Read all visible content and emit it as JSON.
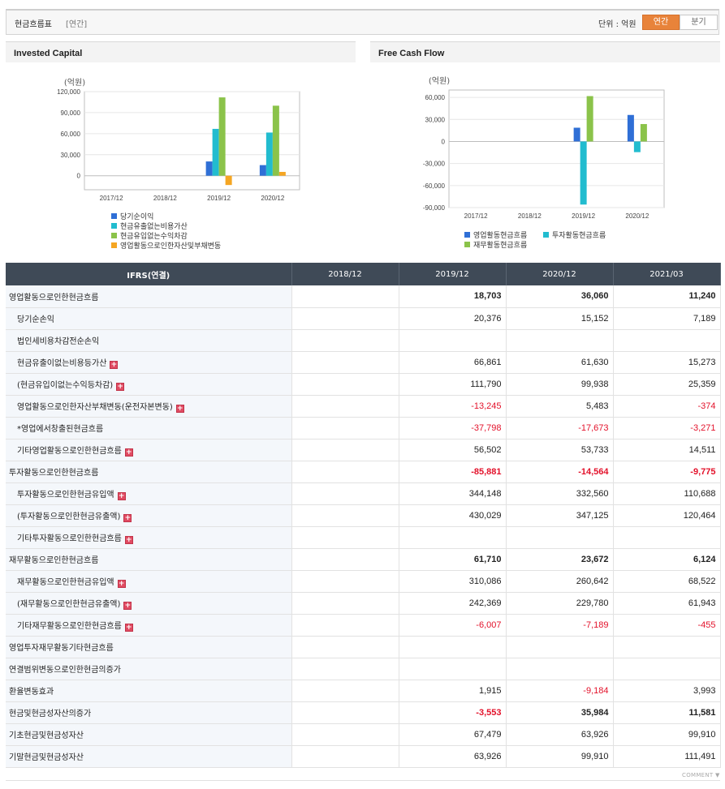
{
  "header": {
    "title": "현금흐름표",
    "subtitle": "[연간]",
    "unit_label": "단위 : 억원",
    "period_active": "연간",
    "period_inactive": "분기"
  },
  "chart_data": [
    {
      "type": "bar",
      "title": "Invested Capital",
      "ylabel": "(억원)",
      "ylim": [
        -20000,
        120000
      ],
      "yticks": [
        120000,
        90000,
        60000,
        30000,
        0
      ],
      "ytick_labels": [
        "120,000",
        "90,000",
        "60,000",
        "30,000",
        "0"
      ],
      "categories": [
        "2017/12",
        "2018/12",
        "2019/12",
        "2020/12"
      ],
      "legend": "bottom",
      "series": [
        {
          "name": "당기순이익",
          "color": "#2f6fd6",
          "values": [
            null,
            null,
            20376,
            15152
          ]
        },
        {
          "name": "현금유출없는비용가산",
          "color": "#22bccf",
          "values": [
            null,
            null,
            66861,
            61630
          ]
        },
        {
          "name": "현금유입없는수익차감",
          "color": "#8bc34a",
          "values": [
            null,
            null,
            111790,
            99938
          ]
        },
        {
          "name": "영업활동으로인한자산및부채변동",
          "color": "#f5a623",
          "values": [
            null,
            null,
            -13245,
            5483
          ]
        }
      ]
    },
    {
      "type": "bar",
      "title": "Free Cash Flow",
      "ylabel": "(억원)",
      "ylim": [
        -90000,
        70000
      ],
      "yticks": [
        60000,
        30000,
        0,
        -30000,
        -60000,
        -90000
      ],
      "ytick_labels": [
        "60,000",
        "30,000",
        "0",
        "-30,000",
        "-60,000",
        "-90,000"
      ],
      "categories": [
        "2017/12",
        "2018/12",
        "2019/12",
        "2020/12"
      ],
      "legend": "bottom",
      "series": [
        {
          "name": "영업활동현금흐름",
          "color": "#2f6fd6",
          "values": [
            null,
            null,
            18703,
            36060
          ]
        },
        {
          "name": "투자활동현금흐름",
          "color": "#22bccf",
          "values": [
            null,
            null,
            -85881,
            -14564
          ]
        },
        {
          "name": "재무활동현금흐름",
          "color": "#8bc34a",
          "values": [
            null,
            null,
            61710,
            23672
          ]
        }
      ]
    }
  ],
  "table": {
    "header": [
      "IFRS(연결)",
      "2018/12",
      "2019/12",
      "2020/12",
      "2021/03"
    ],
    "rows": [
      {
        "label": "영업활동으로인한현금흐름",
        "level": "main",
        "expand": false,
        "values": [
          "",
          "18,703",
          "36,060",
          "11,240"
        ]
      },
      {
        "label": "당기순손익",
        "level": "sub",
        "expand": false,
        "values": [
          "",
          "20,376",
          "15,152",
          "7,189"
        ]
      },
      {
        "label": "법인세비용차감전순손익",
        "level": "sub",
        "expand": false,
        "values": [
          "",
          "",
          "",
          ""
        ]
      },
      {
        "label": "현금유출이없는비용등가산",
        "level": "sub",
        "expand": true,
        "values": [
          "",
          "66,861",
          "61,630",
          "15,273"
        ]
      },
      {
        "label": "(현금유입이없는수익등차감)",
        "level": "sub",
        "expand": true,
        "values": [
          "",
          "111,790",
          "99,938",
          "25,359"
        ]
      },
      {
        "label": "영업활동으로인한자산부채변동(운전자본변동)",
        "level": "sub",
        "expand": true,
        "values": [
          "",
          "-13,245",
          "5,483",
          "-374"
        ]
      },
      {
        "label": "*영업에서창출된현금흐름",
        "level": "sub",
        "expand": false,
        "values": [
          "",
          "-37,798",
          "-17,673",
          "-3,271"
        ]
      },
      {
        "label": "기타영업활동으로인한현금흐름",
        "level": "sub",
        "expand": true,
        "values": [
          "",
          "56,502",
          "53,733",
          "14,511"
        ]
      },
      {
        "label": "투자활동으로인한현금흐름",
        "level": "main",
        "expand": false,
        "values": [
          "",
          "-85,881",
          "-14,564",
          "-9,775"
        ]
      },
      {
        "label": "투자활동으로인한현금유입액",
        "level": "sub",
        "expand": true,
        "values": [
          "",
          "344,148",
          "332,560",
          "110,688"
        ]
      },
      {
        "label": "(투자활동으로인한현금유출액)",
        "level": "sub",
        "expand": true,
        "values": [
          "",
          "430,029",
          "347,125",
          "120,464"
        ]
      },
      {
        "label": "기타투자활동으로인한현금흐름",
        "level": "sub",
        "expand": true,
        "values": [
          "",
          "",
          "",
          ""
        ]
      },
      {
        "label": "재무활동으로인한현금흐름",
        "level": "main",
        "expand": false,
        "values": [
          "",
          "61,710",
          "23,672",
          "6,124"
        ]
      },
      {
        "label": "재무활동으로인한현금유입액",
        "level": "sub",
        "expand": true,
        "values": [
          "",
          "310,086",
          "260,642",
          "68,522"
        ]
      },
      {
        "label": "(재무활동으로인한현금유출액)",
        "level": "sub",
        "expand": true,
        "values": [
          "",
          "242,369",
          "229,780",
          "61,943"
        ]
      },
      {
        "label": "기타재무활동으로인한현금흐름",
        "level": "sub",
        "expand": true,
        "values": [
          "",
          "-6,007",
          "-7,189",
          "-455"
        ]
      },
      {
        "label": "영업투자재무활동기타현금흐름",
        "level": "main",
        "expand": false,
        "values": [
          "",
          "",
          "",
          ""
        ]
      },
      {
        "label": "연결범위변동으로인한현금의증가",
        "level": "main",
        "expand": false,
        "values": [
          "",
          "",
          "",
          ""
        ]
      },
      {
        "label": "환율변동효과",
        "level": "plain",
        "expand": false,
        "values": [
          "",
          "1,915",
          "-9,184",
          "3,993"
        ]
      },
      {
        "label": "현금및현금성자산의증가",
        "level": "main",
        "expand": false,
        "values": [
          "",
          "-3,553",
          "35,984",
          "11,581"
        ]
      },
      {
        "label": "기초현금및현금성자산",
        "level": "plain",
        "expand": false,
        "values": [
          "",
          "67,479",
          "63,926",
          "99,910"
        ]
      },
      {
        "label": "기말현금및현금성자산",
        "level": "plain",
        "expand": false,
        "values": [
          "",
          "63,926",
          "99,910",
          "111,491"
        ]
      }
    ]
  },
  "footer": {
    "comment_label": "COMMENT ▼"
  }
}
